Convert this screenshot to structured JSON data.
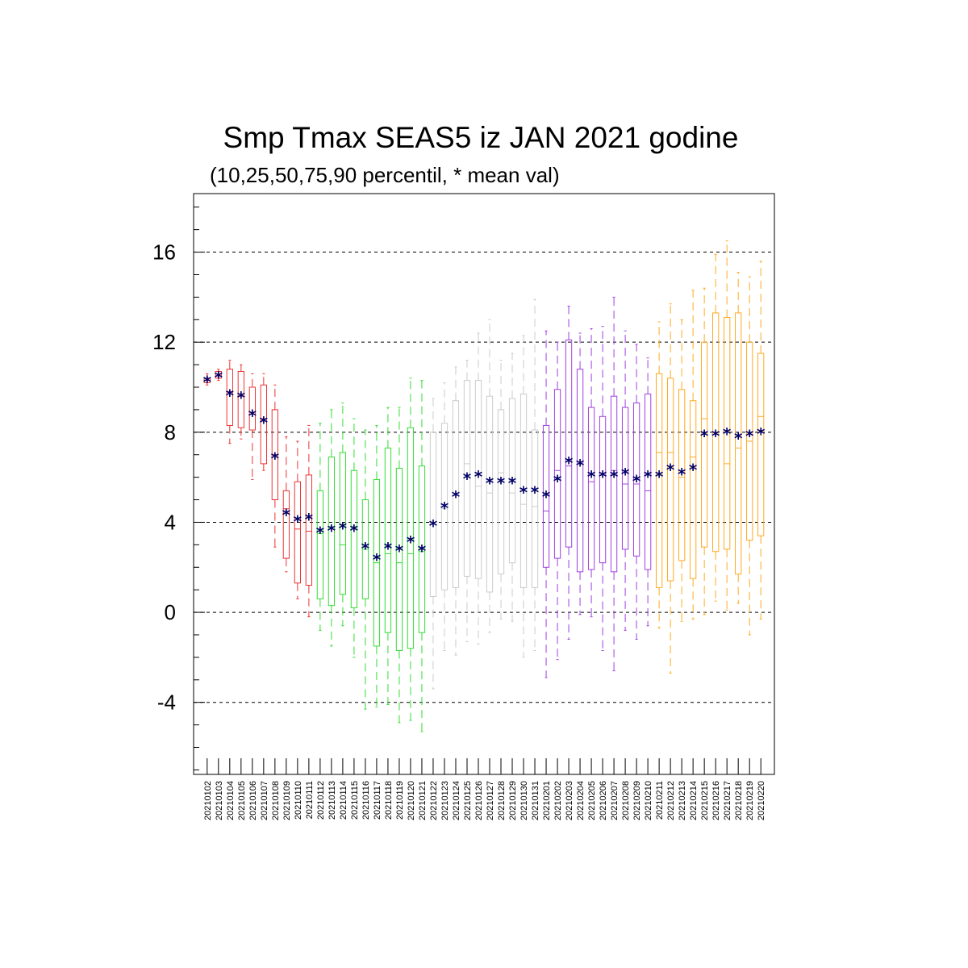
{
  "chart_data": {
    "type": "box",
    "title": "Smp Tmax SEAS5 iz JAN 2021 godine",
    "subtitle": "(10,25,50,75,90 percentil, * mean val)",
    "ylim": [
      -7.2,
      18.6
    ],
    "yticks": [
      -4,
      0,
      4,
      8,
      12,
      16
    ],
    "ytick_labels": [
      "-4",
      "0",
      "4",
      "8",
      "12",
      "16"
    ],
    "grid": "horizontal dashed at major ticks",
    "mean_marker": "*",
    "mean_color": "#000066",
    "colors": {
      "red": "#ee3333",
      "green": "#33dd33",
      "lightgray": "#cccccc",
      "purple": "#a040e0",
      "orange": "#ffaa22"
    },
    "categories": [
      "20210102",
      "20210103",
      "20210104",
      "20210105",
      "20210106",
      "20210107",
      "20210108",
      "20210109",
      "20210110",
      "20210111",
      "20210112",
      "20210113",
      "20210114",
      "20210115",
      "20210116",
      "20210117",
      "20210118",
      "20210119",
      "20210120",
      "20210121",
      "20210122",
      "20210123",
      "20210124",
      "20210125",
      "20210126",
      "20210127",
      "20210128",
      "20210129",
      "20210130",
      "20210131",
      "20210201",
      "20210202",
      "20210203",
      "20210204",
      "20210205",
      "20210206",
      "20210207",
      "20210208",
      "20210209",
      "20210210",
      "20210211",
      "20210212",
      "20210213",
      "20210214",
      "20210215",
      "20210216",
      "20210217",
      "20210218",
      "20210219",
      "20210220"
    ],
    "color_groups": [
      "red",
      "red",
      "red",
      "red",
      "red",
      "red",
      "red",
      "red",
      "red",
      "red",
      "green",
      "green",
      "green",
      "green",
      "green",
      "green",
      "green",
      "green",
      "green",
      "green",
      "lightgray",
      "lightgray",
      "lightgray",
      "lightgray",
      "lightgray",
      "lightgray",
      "lightgray",
      "lightgray",
      "lightgray",
      "lightgray",
      "purple",
      "purple",
      "purple",
      "purple",
      "purple",
      "purple",
      "purple",
      "purple",
      "purple",
      "purple",
      "orange",
      "orange",
      "orange",
      "orange",
      "orange",
      "orange",
      "orange",
      "orange",
      "orange",
      "orange"
    ],
    "p10": [
      10.1,
      10.3,
      7.5,
      7.7,
      5.9,
      6.3,
      2.9,
      1.8,
      0.6,
      -0.2,
      -0.8,
      -1.5,
      -0.6,
      -2.0,
      -4.3,
      -4.2,
      -4.1,
      -4.9,
      -4.8,
      -5.3,
      -3.4,
      -1.7,
      -1.9,
      -1.3,
      -1.4,
      -0.9,
      -0.3,
      -0.4,
      -2.0,
      -1.7,
      -2.9,
      -2.1,
      -1.2,
      -0.1,
      -0.2,
      -1.7,
      -2.6,
      -0.8,
      -1.2,
      -0.6,
      -0.7,
      -2.7,
      -0.4,
      -0.3,
      -0.1,
      0.5,
      0.1,
      0.4,
      -1.0,
      -0.3
    ],
    "p25": [
      10.2,
      10.4,
      8.3,
      8.2,
      8.1,
      6.6,
      5.0,
      2.4,
      1.3,
      1.2,
      0.6,
      0.3,
      0.8,
      0.2,
      0.6,
      -1.5,
      -0.9,
      -1.7,
      -1.6,
      -0.9,
      0.7,
      1.0,
      1.1,
      1.6,
      1.5,
      0.9,
      1.7,
      2.2,
      1.1,
      1.1,
      2.0,
      2.4,
      2.9,
      1.8,
      1.9,
      2.2,
      1.8,
      2.8,
      2.5,
      1.9,
      1.1,
      1.4,
      2.3,
      1.5,
      2.9,
      2.7,
      2.8,
      1.7,
      3.2,
      3.4
    ],
    "p50": [
      10.3,
      10.5,
      9.8,
      9.6,
      8.8,
      8.6,
      7.0,
      4.6,
      3.7,
      3.6,
      3.5,
      3.8,
      3.0,
      3.8,
      2.8,
      2.2,
      2.6,
      2.2,
      2.6,
      2.7,
      4.0,
      4.6,
      5.2,
      6.6,
      5.6,
      5.3,
      6.2,
      5.3,
      4.8,
      4.7,
      4.5,
      6.3,
      6.5,
      6.6,
      5.8,
      6.1,
      6.3,
      5.7,
      5.7,
      5.4,
      7.1,
      7.1,
      6.0,
      6.9,
      8.6,
      8.0,
      6.6,
      7.3,
      7.6,
      8.7
    ],
    "p75": [
      10.4,
      10.7,
      10.8,
      10.7,
      10.0,
      10.1,
      9.0,
      5.4,
      5.8,
      6.1,
      5.4,
      6.9,
      7.1,
      6.3,
      5.0,
      5.9,
      7.3,
      6.4,
      8.2,
      6.5,
      8.0,
      8.4,
      9.4,
      10.3,
      10.3,
      9.6,
      9.0,
      9.5,
      9.7,
      8.1,
      8.3,
      9.9,
      12.1,
      10.8,
      9.1,
      8.7,
      9.6,
      9.1,
      9.3,
      9.7,
      10.6,
      10.4,
      9.9,
      9.4,
      12.0,
      13.3,
      13.1,
      13.3,
      12.0,
      11.5
    ],
    "p90": [
      10.6,
      10.8,
      11.2,
      11.0,
      10.6,
      10.6,
      10.1,
      7.8,
      7.6,
      8.3,
      8.4,
      9.0,
      9.3,
      8.6,
      8.1,
      8.3,
      9.1,
      9.1,
      10.4,
      10.3,
      9.5,
      10.2,
      10.9,
      11.2,
      12.4,
      13.0,
      11.2,
      11.5,
      12.3,
      13.9,
      12.5,
      12.0,
      13.6,
      12.4,
      12.6,
      12.7,
      14.0,
      12.5,
      11.9,
      11.3,
      12.9,
      13.7,
      13.0,
      14.3,
      14.4,
      15.9,
      16.5,
      15.1,
      14.9,
      15.6
    ],
    "mean": [
      10.3,
      10.5,
      9.7,
      9.6,
      8.8,
      8.5,
      6.9,
      4.4,
      4.1,
      4.2,
      3.6,
      3.7,
      3.8,
      3.7,
      2.9,
      2.4,
      2.9,
      2.8,
      3.2,
      2.8,
      3.9,
      4.7,
      5.2,
      6.0,
      6.1,
      5.8,
      5.8,
      5.8,
      5.4,
      5.4,
      5.2,
      5.9,
      6.7,
      6.6,
      6.1,
      6.1,
      6.1,
      6.2,
      5.9,
      6.1,
      6.1,
      6.4,
      6.2,
      6.4,
      7.9,
      7.9,
      8.0,
      7.8,
      7.9,
      8.0
    ]
  }
}
